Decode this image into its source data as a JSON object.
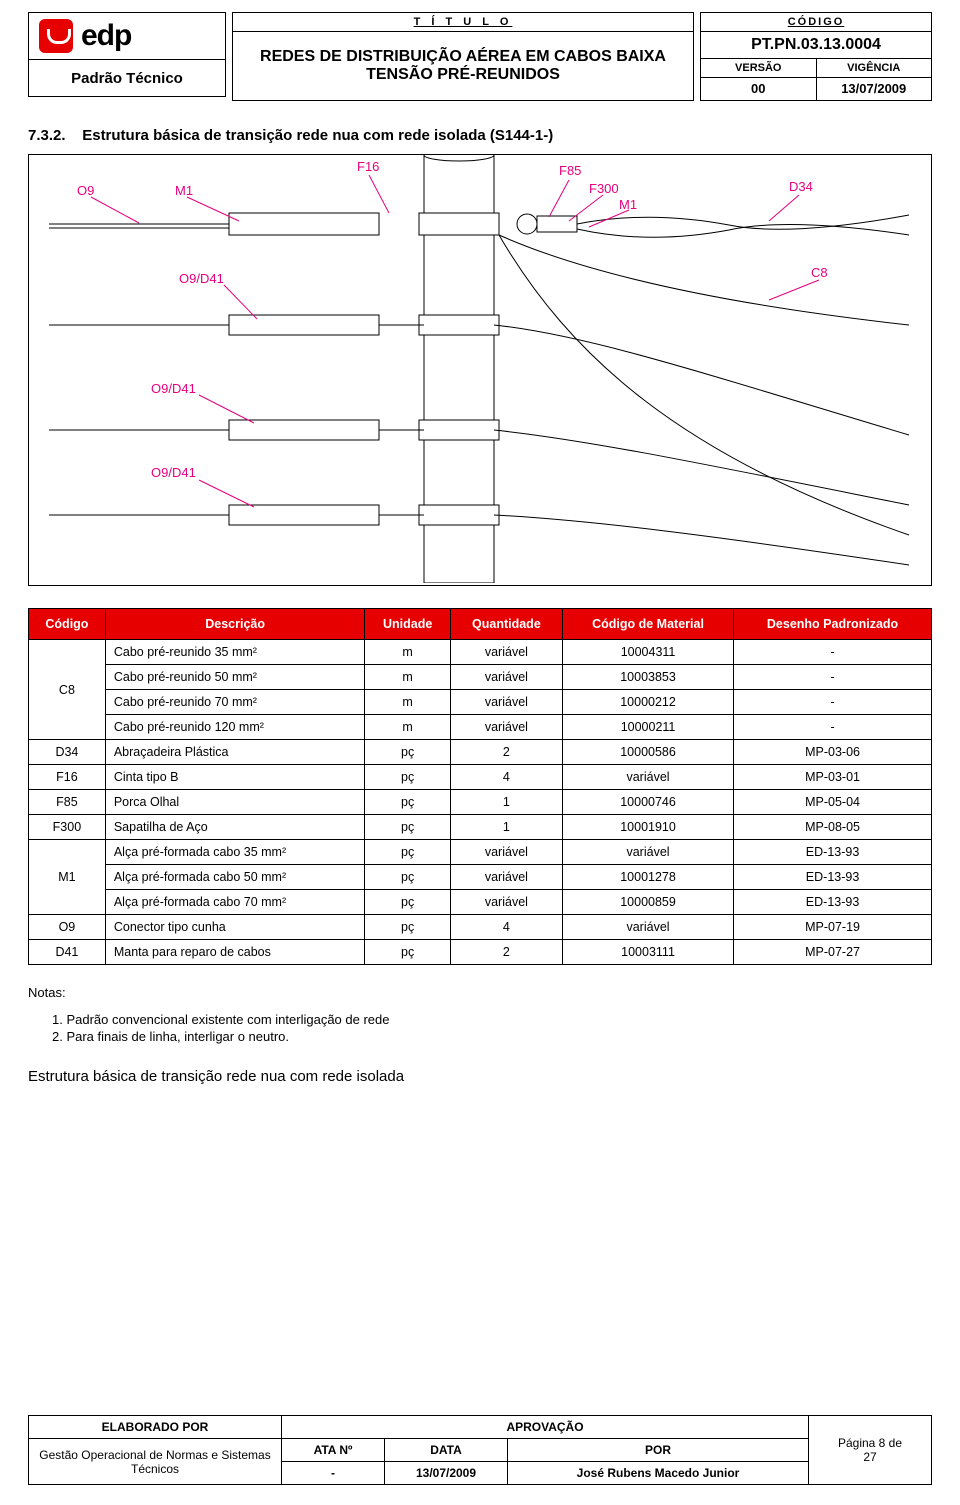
{
  "header": {
    "logo_text": "edp",
    "padrao": "Padrão Técnico",
    "titulo_label": "T Í T U L O",
    "titulo_main": "REDES DE DISTRIBUIÇÃO AÉREA EM CABOS BAIXA TENSÃO PRÉ-REUNIDOS",
    "codigo_label": "CÓDIGO",
    "codigo_val": "PT.PN.03.13.0004",
    "versao_label": "VERSÃO",
    "versao_val": "00",
    "vigencia_label": "VIGÊNCIA",
    "vigencia_val": "13/07/2009"
  },
  "section": {
    "number": "7.3.2.",
    "title": "Estrutura básica de transição rede nua com rede isolada (S144-1-)"
  },
  "diagram": {
    "labels": {
      "O9": "O9",
      "M1a": "M1",
      "F16": "F16",
      "F85": "F85",
      "F300": "F300",
      "M1b": "M1",
      "D34": "D34",
      "C8": "C8",
      "O9D41_1": "O9/D41",
      "O9D41_2": "O9/D41",
      "O9D41_3": "O9/D41"
    },
    "colors": {
      "callout": "#e6007e",
      "line": "#000000",
      "pole_fill": "#ffffff"
    }
  },
  "table": {
    "headers": [
      "Código",
      "Descrição",
      "Unidade",
      "Quantidade",
      "Código de Material",
      "Desenho Padronizado"
    ],
    "groups": [
      {
        "code": "C8",
        "rows": [
          {
            "desc": "Cabo pré-reunido 35 mm²",
            "unit": "m",
            "qty": "variável",
            "mat": "10004311",
            "draw": "-"
          },
          {
            "desc": "Cabo pré-reunido 50 mm²",
            "unit": "m",
            "qty": "variável",
            "mat": "10003853",
            "draw": "-"
          },
          {
            "desc": "Cabo pré-reunido 70 mm²",
            "unit": "m",
            "qty": "variável",
            "mat": "10000212",
            "draw": "-"
          },
          {
            "desc": "Cabo pré-reunido 120 mm²",
            "unit": "m",
            "qty": "variável",
            "mat": "10000211",
            "draw": "-"
          }
        ]
      },
      {
        "code": "D34",
        "rows": [
          {
            "desc": "Abraçadeira Plástica",
            "unit": "pç",
            "qty": "2",
            "mat": "10000586",
            "draw": "MP-03-06"
          }
        ]
      },
      {
        "code": "F16",
        "rows": [
          {
            "desc": "Cinta tipo B",
            "unit": "pç",
            "qty": "4",
            "mat": "variável",
            "draw": "MP-03-01"
          }
        ]
      },
      {
        "code": "F85",
        "rows": [
          {
            "desc": "Porca Olhal",
            "unit": "pç",
            "qty": "1",
            "mat": "10000746",
            "draw": "MP-05-04"
          }
        ]
      },
      {
        "code": "F300",
        "rows": [
          {
            "desc": "Sapatilha de Aço",
            "unit": "pç",
            "qty": "1",
            "mat": "10001910",
            "draw": "MP-08-05"
          }
        ]
      },
      {
        "code": "M1",
        "rows": [
          {
            "desc": "Alça pré-formada cabo 35 mm²",
            "unit": "pç",
            "qty": "variável",
            "mat": "variável",
            "draw": "ED-13-93"
          },
          {
            "desc": "Alça pré-formada cabo 50 mm²",
            "unit": "pç",
            "qty": "variável",
            "mat": "10001278",
            "draw": "ED-13-93"
          },
          {
            "desc": "Alça pré-formada cabo 70 mm²",
            "unit": "pç",
            "qty": "variável",
            "mat": "10000859",
            "draw": "ED-13-93"
          }
        ]
      },
      {
        "code": "O9",
        "rows": [
          {
            "desc": "Conector tipo cunha",
            "unit": "pç",
            "qty": "4",
            "mat": "variável",
            "draw": "MP-07-19"
          }
        ]
      },
      {
        "code": "D41",
        "rows": [
          {
            "desc": "Manta para reparo de cabos",
            "unit": "pç",
            "qty": "2",
            "mat": "10003111",
            "draw": "MP-07-27"
          }
        ]
      }
    ]
  },
  "notes": {
    "title": "Notas:",
    "lines": [
      "1. Padrão convencional existente com interligação de rede",
      "2. Para finais de linha, interligar o neutro."
    ]
  },
  "caption": "Estrutura básica de transição rede nua com rede isolada",
  "footer": {
    "elab_label": "ELABORADO POR",
    "elab_val": "Gestão Operacional de Normas e Sistemas Técnicos",
    "aprov_label": "APROVAÇÃO",
    "ata_label": "ATA Nº",
    "ata_val": "-",
    "data_label": "DATA",
    "data_val": "13/07/2009",
    "por_label": "POR",
    "por_val": "José Rubens Macedo Junior",
    "page_label": "Página 8 de",
    "page_total": "27"
  }
}
